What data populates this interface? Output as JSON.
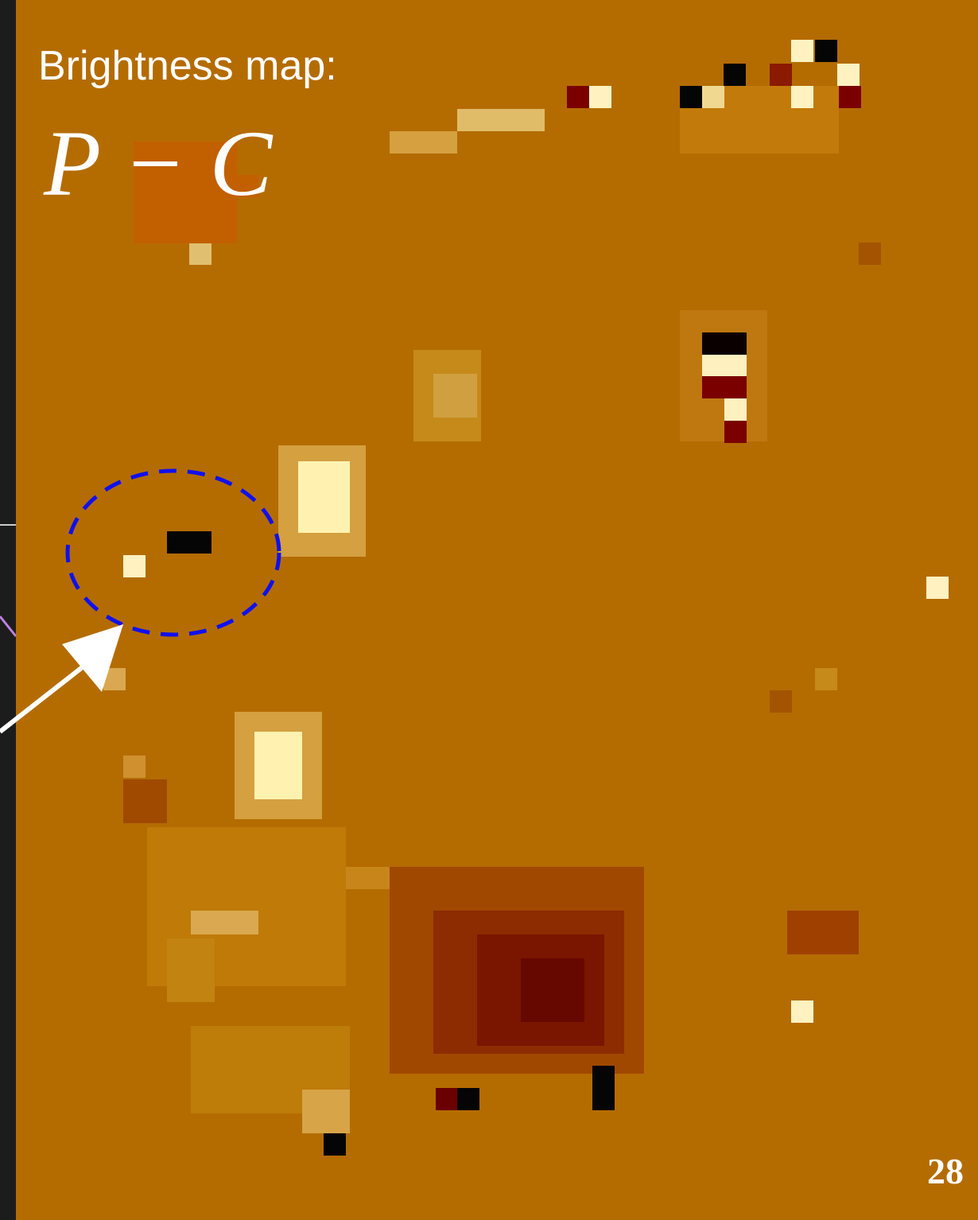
{
  "slide": {
    "heading": "Brightness map:",
    "formula": "P − C",
    "page_number": "28"
  }
}
